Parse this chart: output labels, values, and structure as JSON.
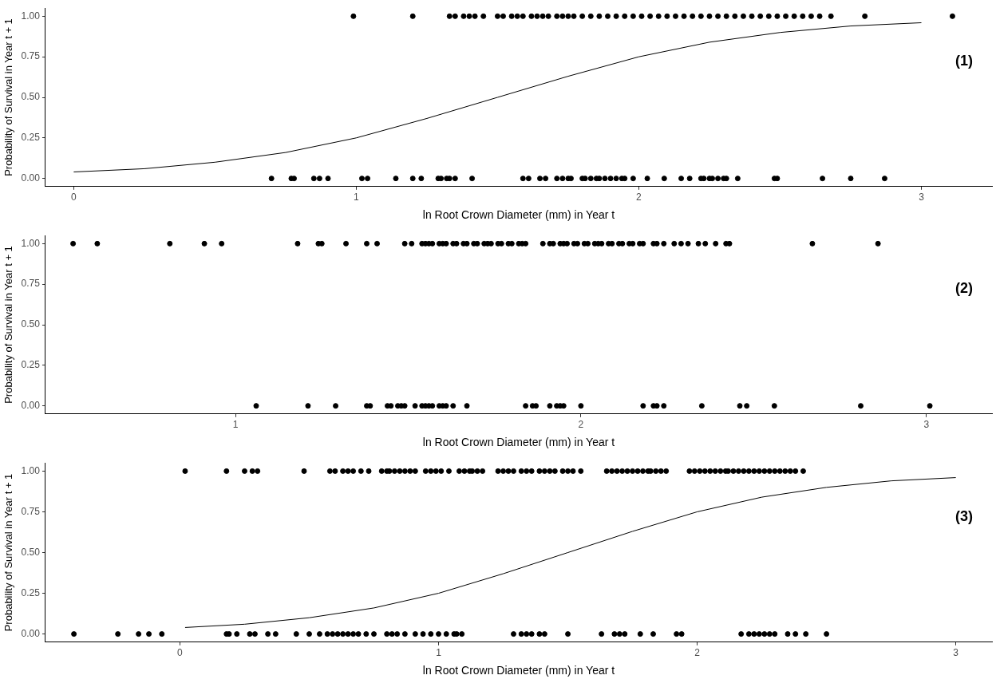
{
  "chart_data": [
    {
      "type": "scatter",
      "xlabel": "ln Root Crown Diameter (mm) in Year t",
      "ylabel": "Probability of Survival in Year t + 1",
      "annotations": [
        "(1)"
      ],
      "xlim": [
        -0.1,
        3.25
      ],
      "xticks": [
        0,
        1,
        2,
        3
      ],
      "ylim": [
        -0.05,
        1.05
      ],
      "yticks": [
        {
          "value": 0,
          "label": "0.00"
        },
        {
          "value": 0.25,
          "label": "0.25"
        },
        {
          "value": 0.5,
          "label": "0.50"
        },
        {
          "value": 0.75,
          "label": "0.75"
        },
        {
          "value": 1,
          "label": "1.00"
        }
      ],
      "grid": false,
      "legend": false,
      "marker": "circle",
      "series": [
        {
          "color": "#000000",
          "x": [
            0.99,
            1.2,
            1.33,
            1.35,
            1.38,
            1.4,
            1.42,
            1.45,
            1.5,
            1.52,
            1.55,
            1.57,
            1.59,
            1.62,
            1.64,
            1.66,
            1.68,
            1.71,
            1.73,
            1.75,
            1.77,
            1.8,
            1.83,
            1.86,
            1.89,
            1.92,
            1.95,
            1.98,
            2.01,
            2.04,
            2.07,
            2.1,
            2.13,
            2.16,
            2.19,
            2.22,
            2.25,
            2.28,
            2.31,
            2.34,
            2.37,
            2.4,
            2.43,
            2.46,
            2.49,
            2.52,
            2.55,
            2.58,
            2.61,
            2.64,
            2.68,
            2.8,
            3.11
          ],
          "values": [
            1,
            1,
            1,
            1,
            1,
            1,
            1,
            1,
            1,
            1,
            1,
            1,
            1,
            1,
            1,
            1,
            1,
            1,
            1,
            1,
            1,
            1,
            1,
            1,
            1,
            1,
            1,
            1,
            1,
            1,
            1,
            1,
            1,
            1,
            1,
            1,
            1,
            1,
            1,
            1,
            1,
            1,
            1,
            1,
            1,
            1,
            1,
            1,
            1,
            1,
            1,
            1,
            1
          ]
        },
        {
          "color": "#000000",
          "x": [
            0.7,
            0.77,
            0.78,
            0.85,
            0.87,
            0.9,
            1.02,
            1.04,
            1.14,
            1.2,
            1.23,
            1.29,
            1.3,
            1.32,
            1.33,
            1.35,
            1.41,
            1.59,
            1.61,
            1.65,
            1.67,
            1.71,
            1.73,
            1.75,
            1.76,
            1.8,
            1.81,
            1.83,
            1.85,
            1.86,
            1.88,
            1.9,
            1.92,
            1.94,
            1.95,
            1.98,
            2.03,
            2.09,
            2.15,
            2.18,
            2.22,
            2.23,
            2.25,
            2.26,
            2.28,
            2.3,
            2.31,
            2.35,
            2.48,
            2.49,
            2.65,
            2.75,
            2.87
          ],
          "values": [
            0,
            0,
            0,
            0,
            0,
            0,
            0,
            0,
            0,
            0,
            0,
            0,
            0,
            0,
            0,
            0,
            0,
            0,
            0,
            0,
            0,
            0,
            0,
            0,
            0,
            0,
            0,
            0,
            0,
            0,
            0,
            0,
            0,
            0,
            0,
            0,
            0,
            0,
            0,
            0,
            0,
            0,
            0,
            0,
            0,
            0,
            0,
            0,
            0,
            0,
            0,
            0,
            0
          ]
        },
        {
          "type": "line",
          "marker": "none",
          "color": "#000000",
          "x": [
            0,
            0.25,
            0.5,
            0.75,
            1,
            1.25,
            1.5,
            1.75,
            2,
            2.25,
            2.5,
            2.75,
            3
          ],
          "values": [
            0.04,
            0.06,
            0.1,
            0.16,
            0.25,
            0.37,
            0.5,
            0.63,
            0.75,
            0.84,
            0.9,
            0.94,
            0.96
          ]
        }
      ]
    },
    {
      "type": "scatter",
      "xlabel": "ln Root Crown Diameter (mm) in Year t",
      "ylabel": "Probability of Survival in Year t + 1",
      "annotations": [
        "(2)"
      ],
      "xlim": [
        0.45,
        3.19
      ],
      "xticks": [
        1,
        2,
        3
      ],
      "ylim": [
        -0.05,
        1.05
      ],
      "yticks": [
        {
          "value": 0,
          "label": "0.00"
        },
        {
          "value": 0.25,
          "label": "0.25"
        },
        {
          "value": 0.5,
          "label": "0.50"
        },
        {
          "value": 0.75,
          "label": "0.75"
        },
        {
          "value": 1,
          "label": "1.00"
        }
      ],
      "grid": false,
      "legend": false,
      "marker": "circle",
      "series": [
        {
          "color": "#000000",
          "x": [
            0.53,
            0.6,
            0.81,
            0.91,
            0.96,
            1.18,
            1.24,
            1.25,
            1.32,
            1.38,
            1.41,
            1.49,
            1.51,
            1.54,
            1.55,
            1.56,
            1.57,
            1.59,
            1.6,
            1.61,
            1.63,
            1.64,
            1.66,
            1.67,
            1.69,
            1.7,
            1.72,
            1.73,
            1.74,
            1.76,
            1.77,
            1.79,
            1.8,
            1.82,
            1.83,
            1.84,
            1.89,
            1.91,
            1.92,
            1.94,
            1.95,
            1.96,
            1.98,
            1.99,
            2.01,
            2.02,
            2.04,
            2.05,
            2.06,
            2.08,
            2.09,
            2.11,
            2.12,
            2.14,
            2.15,
            2.17,
            2.18,
            2.21,
            2.22,
            2.24,
            2.27,
            2.29,
            2.31,
            2.34,
            2.36,
            2.39,
            2.42,
            2.43,
            2.67,
            2.86
          ],
          "values": [
            1,
            1,
            1,
            1,
            1,
            1,
            1,
            1,
            1,
            1,
            1,
            1,
            1,
            1,
            1,
            1,
            1,
            1,
            1,
            1,
            1,
            1,
            1,
            1,
            1,
            1,
            1,
            1,
            1,
            1,
            1,
            1,
            1,
            1,
            1,
            1,
            1,
            1,
            1,
            1,
            1,
            1,
            1,
            1,
            1,
            1,
            1,
            1,
            1,
            1,
            1,
            1,
            1,
            1,
            1,
            1,
            1,
            1,
            1,
            1,
            1,
            1,
            1,
            1,
            1,
            1,
            1,
            1,
            1,
            1
          ]
        },
        {
          "color": "#000000",
          "x": [
            1.06,
            1.21,
            1.29,
            1.38,
            1.39,
            1.44,
            1.45,
            1.47,
            1.48,
            1.49,
            1.52,
            1.54,
            1.55,
            1.56,
            1.57,
            1.59,
            1.6,
            1.61,
            1.63,
            1.67,
            1.84,
            1.86,
            1.87,
            1.91,
            1.93,
            1.94,
            1.95,
            2.0,
            2.18,
            2.21,
            2.22,
            2.24,
            2.35,
            2.46,
            2.48,
            2.56,
            2.81,
            3.01
          ],
          "values": [
            0,
            0,
            0,
            0,
            0,
            0,
            0,
            0,
            0,
            0,
            0,
            0,
            0,
            0,
            0,
            0,
            0,
            0,
            0,
            0,
            0,
            0,
            0,
            0,
            0,
            0,
            0,
            0,
            0,
            0,
            0,
            0,
            0,
            0,
            0,
            0,
            0,
            0
          ]
        }
      ]
    },
    {
      "type": "scatter",
      "xlabel": "ln Root Crown Diameter (mm) in Year t",
      "ylabel": "Probability of Survival in Year t + 1",
      "annotations": [
        "(3)"
      ],
      "xlim": [
        -0.52,
        3.14
      ],
      "xticks": [
        0,
        1,
        2,
        3
      ],
      "ylim": [
        -0.05,
        1.05
      ],
      "yticks": [
        {
          "value": 0,
          "label": "0.00"
        },
        {
          "value": 0.25,
          "label": "0.25"
        },
        {
          "value": 0.5,
          "label": "0.50"
        },
        {
          "value": 0.75,
          "label": "0.75"
        },
        {
          "value": 1,
          "label": "1.00"
        }
      ],
      "grid": false,
      "legend": false,
      "marker": "circle",
      "series": [
        {
          "color": "#000000",
          "x": [
            0.02,
            0.18,
            0.25,
            0.28,
            0.3,
            0.48,
            0.58,
            0.6,
            0.63,
            0.65,
            0.67,
            0.7,
            0.73,
            0.78,
            0.8,
            0.81,
            0.83,
            0.85,
            0.87,
            0.89,
            0.91,
            0.95,
            0.97,
            0.99,
            1.01,
            1.04,
            1.08,
            1.1,
            1.12,
            1.13,
            1.15,
            1.17,
            1.23,
            1.25,
            1.27,
            1.29,
            1.32,
            1.34,
            1.36,
            1.39,
            1.41,
            1.43,
            1.45,
            1.48,
            1.5,
            1.52,
            1.55,
            1.65,
            1.67,
            1.69,
            1.71,
            1.73,
            1.75,
            1.77,
            1.79,
            1.81,
            1.82,
            1.84,
            1.86,
            1.88,
            1.97,
            1.99,
            2.01,
            2.03,
            2.05,
            2.07,
            2.09,
            2.11,
            2.12,
            2.14,
            2.16,
            2.18,
            2.2,
            2.22,
            2.24,
            2.26,
            2.28,
            2.3,
            2.32,
            2.34,
            2.36,
            2.38,
            2.41
          ],
          "values": [
            1,
            1,
            1,
            1,
            1,
            1,
            1,
            1,
            1,
            1,
            1,
            1,
            1,
            1,
            1,
            1,
            1,
            1,
            1,
            1,
            1,
            1,
            1,
            1,
            1,
            1,
            1,
            1,
            1,
            1,
            1,
            1,
            1,
            1,
            1,
            1,
            1,
            1,
            1,
            1,
            1,
            1,
            1,
            1,
            1,
            1,
            1,
            1,
            1,
            1,
            1,
            1,
            1,
            1,
            1,
            1,
            1,
            1,
            1,
            1,
            1,
            1,
            1,
            1,
            1,
            1,
            1,
            1,
            1,
            1,
            1,
            1,
            1,
            1,
            1,
            1,
            1,
            1,
            1,
            1,
            1,
            1,
            1
          ]
        },
        {
          "color": "#000000",
          "x": [
            -0.41,
            -0.24,
            -0.16,
            -0.12,
            -0.07,
            0.18,
            0.19,
            0.22,
            0.27,
            0.29,
            0.34,
            0.37,
            0.45,
            0.5,
            0.54,
            0.57,
            0.59,
            0.61,
            0.63,
            0.65,
            0.67,
            0.69,
            0.72,
            0.75,
            0.8,
            0.82,
            0.84,
            0.87,
            0.91,
            0.94,
            0.97,
            1.0,
            1.03,
            1.06,
            1.07,
            1.09,
            1.29,
            1.32,
            1.34,
            1.36,
            1.39,
            1.41,
            1.5,
            1.63,
            1.68,
            1.7,
            1.72,
            1.78,
            1.83,
            1.92,
            1.94,
            2.17,
            2.2,
            2.22,
            2.24,
            2.26,
            2.28,
            2.3,
            2.35,
            2.38,
            2.42,
            2.5
          ],
          "values": [
            0,
            0,
            0,
            0,
            0,
            0,
            0,
            0,
            0,
            0,
            0,
            0,
            0,
            0,
            0,
            0,
            0,
            0,
            0,
            0,
            0,
            0,
            0,
            0,
            0,
            0,
            0,
            0,
            0,
            0,
            0,
            0,
            0,
            0,
            0,
            0,
            0,
            0,
            0,
            0,
            0,
            0,
            0,
            0,
            0,
            0,
            0,
            0,
            0,
            0,
            0,
            0,
            0,
            0,
            0,
            0,
            0,
            0,
            0,
            0,
            0,
            0
          ]
        },
        {
          "type": "line",
          "marker": "none",
          "color": "#000000",
          "x": [
            0.02,
            0.25,
            0.5,
            0.75,
            1,
            1.25,
            1.5,
            1.75,
            2,
            2.25,
            2.5,
            2.75,
            3
          ],
          "values": [
            0.04,
            0.06,
            0.1,
            0.16,
            0.25,
            0.37,
            0.5,
            0.63,
            0.75,
            0.84,
            0.9,
            0.94,
            0.96
          ]
        }
      ]
    }
  ]
}
